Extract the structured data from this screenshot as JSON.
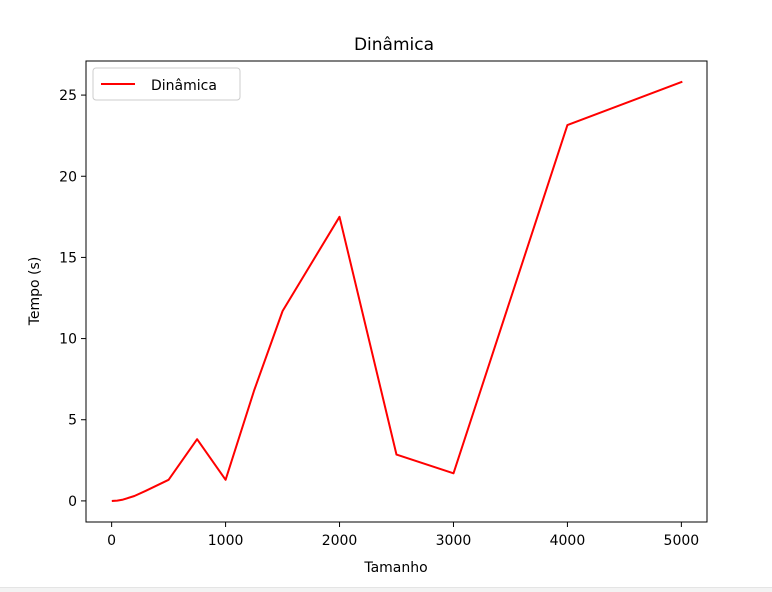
{
  "chart_data": {
    "type": "line",
    "title": "Dinâmica",
    "xlabel": "Tamanho",
    "ylabel": "Tempo (s)",
    "xlim": [
      -225,
      5225
    ],
    "ylim": [
      -1.3,
      27.1
    ],
    "xticks": [
      0,
      1000,
      2000,
      3000,
      4000,
      5000
    ],
    "xtick_labels": [
      "0",
      "1000",
      "2000",
      "3000",
      "4000",
      "5000"
    ],
    "yticks": [
      0,
      5,
      10,
      15,
      20,
      25
    ],
    "ytick_labels": [
      "0",
      "5",
      "10",
      "15",
      "20",
      "25"
    ],
    "grid": false,
    "legend_position": "upper-left",
    "series": [
      {
        "name": "Dinâmica",
        "color": "#ff0000",
        "x": [
          10,
          50,
          100,
          200,
          300,
          500,
          750,
          1000,
          1250,
          1500,
          2000,
          2500,
          3000,
          4000,
          5000
        ],
        "y": [
          0.0,
          0.02,
          0.08,
          0.3,
          0.62,
          1.3,
          3.8,
          1.3,
          6.8,
          11.7,
          17.5,
          2.85,
          1.7,
          23.15,
          25.8
        ]
      }
    ]
  }
}
